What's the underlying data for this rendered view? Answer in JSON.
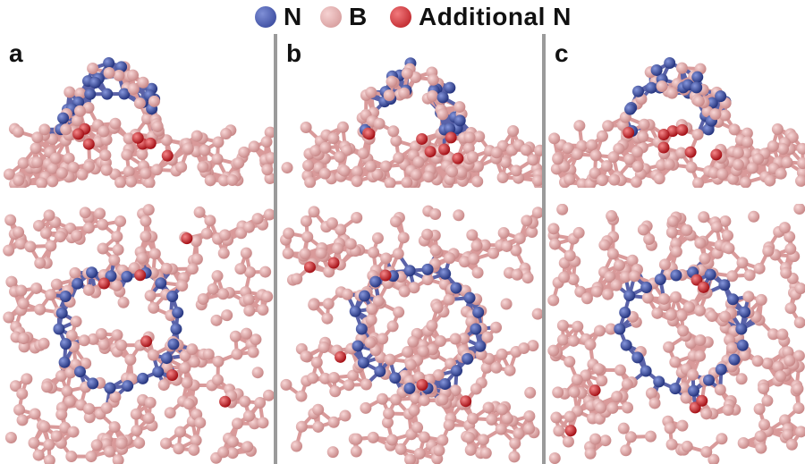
{
  "legend": {
    "items": [
      {
        "label": "N",
        "color": "#3a4ea8"
      },
      {
        "label": "B",
        "color": "#e3a7a7"
      },
      {
        "label": "Additional N",
        "color": "#d32127"
      }
    ]
  },
  "panels": [
    {
      "letter": "a"
    },
    {
      "letter": "b"
    },
    {
      "letter": "c"
    }
  ],
  "colors": {
    "boron": "#e6aaaa",
    "boron_dark": "#c98989",
    "bond": "#d99a9a",
    "nitrogen": "#3a4ea8",
    "additional_n": "#d32127",
    "divider": "#9a9a9a"
  }
}
